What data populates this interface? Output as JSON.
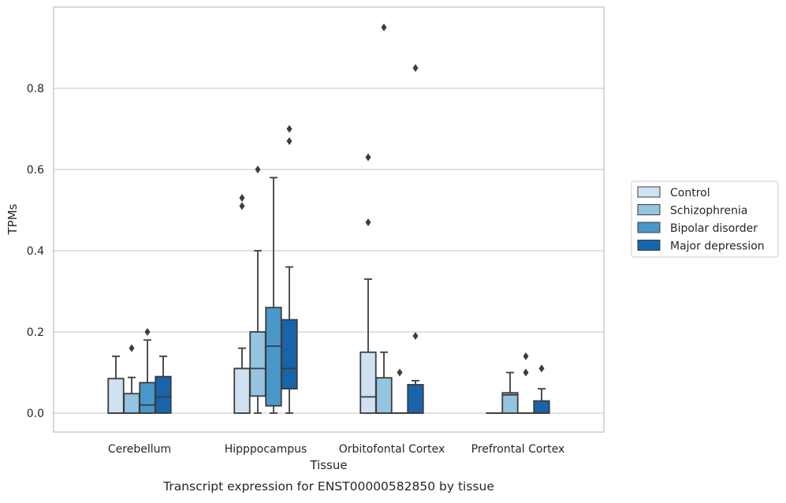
{
  "chart_data": {
    "type": "boxplot",
    "xlabel": "Tissue",
    "ylabel": "TPMs",
    "caption": "Transcript expression for ENST00000582850 by tissue",
    "ylim": [
      -0.045,
      0.99
    ],
    "yticks": [
      0.0,
      0.2,
      0.4,
      0.6,
      0.8
    ],
    "ytick_labels": [
      "0.0",
      "0.2",
      "0.4",
      "0.6",
      "0.8"
    ],
    "grid": "horizontal",
    "legend_position": "right",
    "categories": [
      "Cerebellum",
      "Hipppocampus",
      "Orbitofontal Cortex",
      "Prefrontal Cortex"
    ],
    "series": [
      {
        "name": "Control",
        "color": "#d0e1f2",
        "boxes": [
          {
            "q1": 0.0,
            "median": 0.0,
            "q3": 0.085,
            "whisker_low": 0.0,
            "whisker_high": 0.14,
            "outliers": []
          },
          {
            "q1": 0.0,
            "median": 0.11,
            "q3": 0.11,
            "whisker_low": 0.0,
            "whisker_high": 0.16,
            "outliers": [
              0.51,
              0.53
            ]
          },
          {
            "q1": 0.0,
            "median": 0.04,
            "q3": 0.15,
            "whisker_low": 0.0,
            "whisker_high": 0.33,
            "outliers": [
              0.47,
              0.63
            ]
          },
          {
            "q1": 0.0,
            "median": 0.0,
            "q3": 0.0,
            "whisker_low": 0.0,
            "whisker_high": 0.0,
            "outliers": []
          }
        ]
      },
      {
        "name": "Schizophrenia",
        "color": "#94c4df",
        "boxes": [
          {
            "q1": 0.0,
            "median": 0.0,
            "q3": 0.048,
            "whisker_low": 0.0,
            "whisker_high": 0.088,
            "outliers": [
              0.16
            ]
          },
          {
            "q1": 0.042,
            "median": 0.11,
            "q3": 0.2,
            "whisker_low": 0.0,
            "whisker_high": 0.4,
            "outliers": [
              0.6
            ]
          },
          {
            "q1": 0.0,
            "median": 0.0,
            "q3": 0.087,
            "whisker_low": 0.0,
            "whisker_high": 0.15,
            "outliers": [
              0.95
            ]
          },
          {
            "q1": 0.0,
            "median": 0.045,
            "q3": 0.05,
            "whisker_low": 0.0,
            "whisker_high": 0.1,
            "outliers": []
          }
        ]
      },
      {
        "name": "Bipolar disorder",
        "color": "#4a98c9",
        "boxes": [
          {
            "q1": 0.0,
            "median": 0.02,
            "q3": 0.075,
            "whisker_low": 0.0,
            "whisker_high": 0.18,
            "outliers": [
              0.2
            ]
          },
          {
            "q1": 0.018,
            "median": 0.165,
            "q3": 0.26,
            "whisker_low": 0.0,
            "whisker_high": 0.58,
            "outliers": []
          },
          {
            "q1": 0.0,
            "median": 0.0,
            "q3": 0.0,
            "whisker_low": 0.0,
            "whisker_high": 0.0,
            "outliers": [
              0.1
            ]
          },
          {
            "q1": 0.0,
            "median": 0.0,
            "q3": 0.0,
            "whisker_low": 0.0,
            "whisker_high": 0.0,
            "outliers": [
              0.1,
              0.14
            ]
          }
        ]
      },
      {
        "name": "Major depression",
        "color": "#1764ab",
        "boxes": [
          {
            "q1": 0.0,
            "median": 0.04,
            "q3": 0.09,
            "whisker_low": 0.0,
            "whisker_high": 0.14,
            "outliers": []
          },
          {
            "q1": 0.06,
            "median": 0.11,
            "q3": 0.23,
            "whisker_low": 0.0,
            "whisker_high": 0.36,
            "outliers": [
              0.67,
              0.7
            ]
          },
          {
            "q1": 0.0,
            "median": 0.0,
            "q3": 0.07,
            "whisker_low": 0.0,
            "whisker_high": 0.08,
            "outliers": [
              0.19,
              0.85
            ]
          },
          {
            "q1": 0.0,
            "median": 0.0,
            "q3": 0.03,
            "whisker_low": 0.0,
            "whisker_high": 0.06,
            "outliers": [
              0.11
            ]
          }
        ]
      }
    ]
  }
}
